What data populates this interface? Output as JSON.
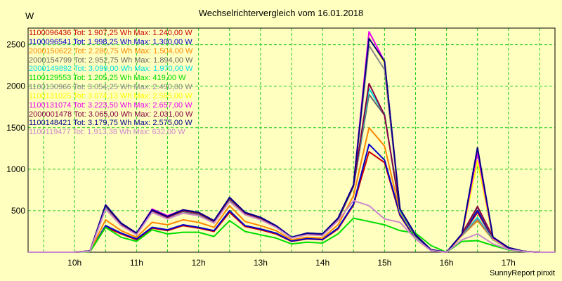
{
  "chart_data": {
    "type": "line",
    "title": "Wechselrichtervergleich vom 16.01.2018",
    "y_unit": "W",
    "credit": "SunnyReport pinxit",
    "x_tick_labels": [
      "10h",
      "11h",
      "12h",
      "13h",
      "14h",
      "15h",
      "16h",
      "17h"
    ],
    "x_range": [
      9.25,
      17.75
    ],
    "ylim": [
      0,
      2700
    ],
    "y_ticks": [
      500,
      1000,
      1500,
      2000,
      2500
    ],
    "grid": true,
    "legend_position": "top-left",
    "x": [
      9.25,
      9.5,
      9.75,
      10.0,
      10.25,
      10.5,
      10.75,
      11.0,
      11.25,
      11.5,
      11.75,
      12.0,
      12.25,
      12.5,
      12.75,
      13.0,
      13.25,
      13.5,
      13.75,
      14.0,
      14.25,
      14.5,
      14.75,
      15.0,
      15.25,
      15.5,
      15.75,
      16.0,
      16.25,
      16.5,
      16.75,
      17.0,
      17.25,
      17.5,
      17.75
    ],
    "series": [
      {
        "name": "1100096436",
        "legend": "1100096436  Tot: 1.907,25 Wh  Max: 1.240,00 W",
        "color": "#cc0000",
        "values": [
          0,
          0,
          0,
          0,
          10,
          300,
          220,
          150,
          290,
          260,
          320,
          290,
          250,
          480,
          310,
          270,
          220,
          130,
          160,
          150,
          280,
          570,
          1210,
          1080,
          440,
          160,
          20,
          0,
          200,
          480,
          160,
          50,
          10,
          0,
          0
        ]
      },
      {
        "name": "1100096541",
        "legend": "1100096541  Tot: 1.998,25 Wh  Max: 1.300,00 W",
        "color": "#0000cc",
        "values": [
          0,
          0,
          0,
          0,
          10,
          320,
          230,
          160,
          300,
          270,
          330,
          300,
          260,
          500,
          320,
          280,
          230,
          135,
          165,
          155,
          290,
          580,
          1300,
          1110,
          450,
          165,
          20,
          0,
          210,
          500,
          165,
          50,
          10,
          0,
          0
        ]
      },
      {
        "name": "2000150622",
        "legend": "2000150622  Tot: 2.280,75 Wh  Max: 1.504,00 W",
        "color": "#ff8800",
        "values": [
          0,
          0,
          0,
          0,
          12,
          390,
          260,
          180,
          360,
          330,
          390,
          360,
          300,
          560,
          370,
          320,
          260,
          150,
          180,
          170,
          330,
          680,
          1500,
          1280,
          480,
          180,
          25,
          0,
          200,
          380,
          150,
          45,
          10,
          0,
          0
        ]
      },
      {
        "name": "2000154799",
        "legend": "2000154799  Tot: 2.952,75 Wh  Max: 1.894,00 W",
        "color": "#666666",
        "values": [
          0,
          0,
          0,
          0,
          15,
          540,
          330,
          220,
          510,
          420,
          490,
          450,
          360,
          630,
          460,
          400,
          300,
          170,
          220,
          210,
          390,
          790,
          1900,
          1650,
          520,
          200,
          30,
          0,
          210,
          540,
          170,
          50,
          10,
          0,
          0
        ]
      },
      {
        "name": "2000149892",
        "legend": "2000149892  Tot: 3.099,00 Wh  Max: 1.970,00 W",
        "color": "#00e0e0",
        "values": [
          0,
          0,
          0,
          0,
          15,
          550,
          350,
          220,
          490,
          420,
          500,
          470,
          370,
          650,
          480,
          420,
          320,
          180,
          230,
          220,
          400,
          800,
          1970,
          1660,
          500,
          190,
          28,
          0,
          200,
          420,
          150,
          45,
          10,
          0,
          0
        ]
      },
      {
        "name": "1100129553",
        "legend": "1100129553  Tot: 1.205,25 Wh  Max: 419,00 W",
        "color": "#00dd00",
        "values": [
          0,
          0,
          0,
          0,
          8,
          300,
          180,
          130,
          270,
          220,
          240,
          240,
          190,
          380,
          250,
          210,
          170,
          100,
          120,
          110,
          220,
          410,
          370,
          330,
          260,
          230,
          80,
          0,
          130,
          140,
          80,
          30,
          8,
          0,
          0
        ]
      },
      {
        "name": "1100130966",
        "legend": "1100130966  Tot: 3.054,25 Wh  Max: 2.490,00 W",
        "color": "#888888",
        "values": [
          0,
          0,
          0,
          0,
          15,
          560,
          340,
          220,
          500,
          420,
          500,
          470,
          370,
          650,
          470,
          410,
          310,
          175,
          225,
          215,
          400,
          800,
          2490,
          2200,
          520,
          210,
          30,
          0,
          200,
          400,
          150,
          45,
          10,
          0,
          0
        ]
      },
      {
        "name": "1100131025",
        "legend": "1100131025  Tot: 3.074,13 Wh  Max: 2.585,00 W",
        "color": "#ffff00",
        "values": [
          0,
          0,
          0,
          0,
          15,
          560,
          340,
          220,
          500,
          420,
          500,
          470,
          370,
          650,
          470,
          410,
          310,
          175,
          225,
          215,
          400,
          800,
          2585,
          2280,
          520,
          210,
          30,
          0,
          200,
          1100,
          160,
          50,
          10,
          0,
          0
        ]
      },
      {
        "name": "1100131074",
        "legend": "1100131074  Tot: 3.223,50 Wh  Max: 2.657,00 W",
        "color": "#ee00ee",
        "values": [
          0,
          0,
          0,
          0,
          16,
          570,
          350,
          230,
          520,
          440,
          510,
          480,
          380,
          660,
          480,
          420,
          320,
          180,
          230,
          220,
          410,
          810,
          2657,
          2300,
          520,
          210,
          30,
          0,
          210,
          1200,
          170,
          50,
          10,
          0,
          0
        ]
      },
      {
        "name": "2000001478",
        "legend": "2000001478  Tot: 3.065,00 Wh  Max: 2.031,00 W",
        "color": "#880044",
        "values": [
          0,
          0,
          0,
          0,
          15,
          560,
          340,
          220,
          500,
          420,
          500,
          470,
          370,
          650,
          470,
          410,
          310,
          175,
          225,
          215,
          400,
          800,
          2031,
          1650,
          520,
          200,
          30,
          0,
          220,
          550,
          180,
          55,
          10,
          0,
          0
        ]
      },
      {
        "name": "1100148421",
        "legend": "1100148421  Tot: 3.179,75 Wh  Max: 2.575,00 W",
        "color": "#000088",
        "values": [
          0,
          0,
          0,
          0,
          15,
          570,
          350,
          230,
          510,
          430,
          510,
          480,
          380,
          660,
          480,
          420,
          320,
          180,
          230,
          220,
          410,
          810,
          2575,
          2300,
          520,
          210,
          30,
          0,
          220,
          1260,
          180,
          55,
          10,
          0,
          0
        ]
      },
      {
        "name": "1100119477",
        "legend": "1100119477  Tot: 1.913,38 Wh  Max: 632,00 W",
        "color": "#cc88cc",
        "values": [
          0,
          0,
          0,
          0,
          12,
          520,
          320,
          210,
          480,
          400,
          470,
          440,
          350,
          610,
          450,
          390,
          300,
          170,
          210,
          200,
          380,
          620,
          560,
          400,
          360,
          160,
          20,
          0,
          150,
          220,
          100,
          35,
          8,
          0,
          0
        ]
      }
    ]
  }
}
